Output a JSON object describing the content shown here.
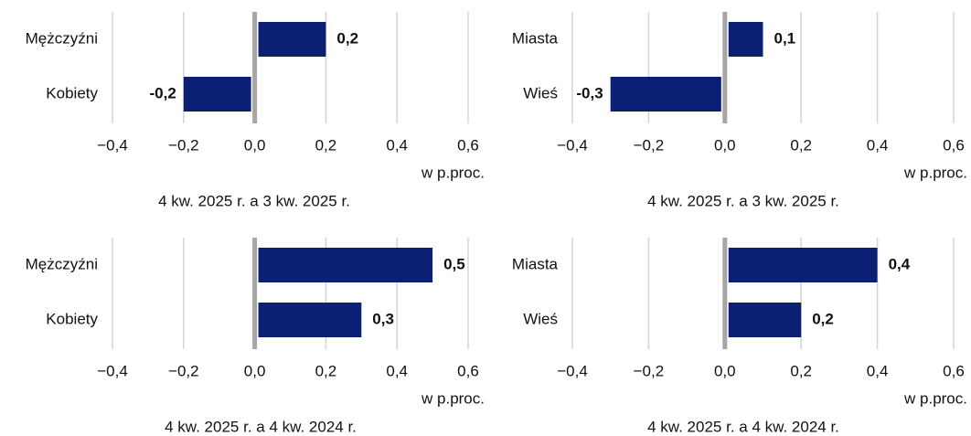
{
  "chart_data": [
    {
      "type": "bar",
      "orientation": "horizontal",
      "categories": [
        "Mężczyźni",
        "Kobiety"
      ],
      "values": [
        0.2,
        -0.2
      ],
      "value_labels": [
        "0,2",
        "-0,2"
      ],
      "color": "#0b1f75",
      "xlim": [
        -0.4,
        0.6
      ],
      "xticks": [
        {
          "value": -0.4,
          "label": "−0,4"
        },
        {
          "value": -0.2,
          "label": "−0,2"
        },
        {
          "value": 0,
          "label": "0,0"
        },
        {
          "value": 0.2,
          "label": "0,2"
        },
        {
          "value": 0.4,
          "label": "0,4"
        },
        {
          "value": 0.6,
          "label": "0,6"
        }
      ],
      "x_label": "w p.proc.",
      "subtitle": "4 kw. 2025 r. a 3 kw. 2025 r.",
      "grid": true
    },
    {
      "type": "bar",
      "orientation": "horizontal",
      "categories": [
        "Miasta",
        "Wieś"
      ],
      "values": [
        0.1,
        -0.3
      ],
      "value_labels": [
        "0,1",
        "-0,3"
      ],
      "color": "#0b1f75",
      "xlim": [
        -0.4,
        0.6
      ],
      "xticks": [
        {
          "value": -0.4,
          "label": "−0,4"
        },
        {
          "value": -0.2,
          "label": "−0,2"
        },
        {
          "value": 0,
          "label": "0,0"
        },
        {
          "value": 0.2,
          "label": "0,2"
        },
        {
          "value": 0.4,
          "label": "0,4"
        },
        {
          "value": 0.6,
          "label": "0,6"
        }
      ],
      "x_label": "w p.proc.",
      "subtitle": "4 kw. 2025 r. a 3 kw. 2025 r.",
      "grid": true
    },
    {
      "type": "bar",
      "orientation": "horizontal",
      "categories": [
        "Mężczyźni",
        "Kobiety"
      ],
      "values": [
        0.5,
        0.3
      ],
      "value_labels": [
        "0,5",
        "0,3"
      ],
      "color": "#0b1f75",
      "xlim": [
        -0.4,
        0.6
      ],
      "xticks": [
        {
          "value": -0.4,
          "label": "−0,4"
        },
        {
          "value": -0.2,
          "label": "−0,2"
        },
        {
          "value": 0,
          "label": "0,0"
        },
        {
          "value": 0.2,
          "label": "0,2"
        },
        {
          "value": 0.4,
          "label": "0,4"
        },
        {
          "value": 0.6,
          "label": "0,6"
        }
      ],
      "x_label": "w p.proc.",
      "subtitle": "4 kw. 2025 r. a 4 kw. 2024 r.",
      "grid": true
    },
    {
      "type": "bar",
      "orientation": "horizontal",
      "categories": [
        "Miasta",
        "Wieś"
      ],
      "values": [
        0.4,
        0.2
      ],
      "value_labels": [
        "0,4",
        "0,2"
      ],
      "color": "#0b1f75",
      "xlim": [
        -0.4,
        0.6
      ],
      "xticks": [
        {
          "value": -0.4,
          "label": "−0,4"
        },
        {
          "value": -0.2,
          "label": "−0,2"
        },
        {
          "value": 0,
          "label": "0,0"
        },
        {
          "value": 0.2,
          "label": "0,2"
        },
        {
          "value": 0.4,
          "label": "0,4"
        },
        {
          "value": 0.6,
          "label": "0,6"
        }
      ],
      "x_label": "w p.proc.",
      "subtitle": "4 kw. 2025 r. a 4 kw. 2024 r.",
      "grid": true
    }
  ]
}
